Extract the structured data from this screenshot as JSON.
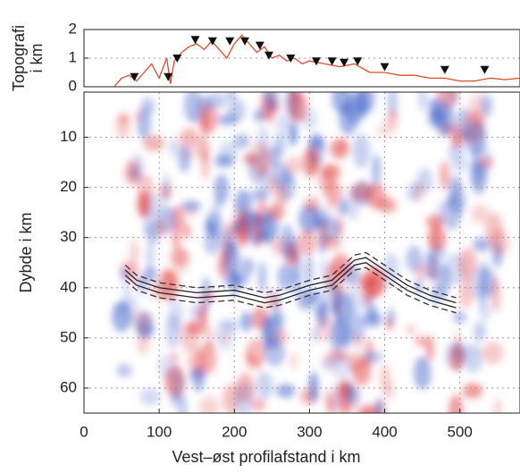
{
  "chart_data": [
    {
      "type": "line",
      "ylabel": [
        "Topografi",
        "i km"
      ],
      "xlim": [
        0,
        580
      ],
      "ylim": [
        0,
        2
      ],
      "yticks": [
        0,
        1,
        2
      ],
      "grid": true,
      "x": [
        40,
        50,
        60,
        70,
        80,
        90,
        100,
        110,
        115,
        120,
        130,
        140,
        150,
        160,
        170,
        180,
        190,
        200,
        210,
        220,
        230,
        240,
        250,
        260,
        270,
        280,
        290,
        300,
        320,
        340,
        360,
        380,
        400,
        420,
        440,
        460,
        480,
        500,
        520,
        540,
        560,
        580
      ],
      "values": [
        0,
        0.3,
        0.4,
        0.2,
        0.5,
        0.8,
        0.3,
        1.0,
        0.1,
        0.9,
        1.2,
        1.4,
        1.5,
        1.3,
        1.6,
        1.3,
        1.0,
        1.5,
        1.8,
        1.5,
        1.2,
        1.4,
        1.0,
        1.1,
        0.9,
        1.0,
        0.8,
        0.9,
        0.8,
        0.7,
        0.8,
        0.5,
        0.5,
        0.4,
        0.4,
        0.3,
        0.3,
        0.2,
        0.2,
        0.3,
        0.25,
        0.3
      ],
      "color": "#e04a2a",
      "stations": {
        "x": [
          67,
          112,
          124,
          148,
          171,
          194,
          214,
          234,
          246,
          275,
          309,
          330,
          346,
          364,
          400,
          480,
          533
        ],
        "values": [
          0.35,
          0.35,
          1.0,
          1.65,
          1.6,
          1.6,
          1.6,
          1.45,
          1.1,
          1.0,
          0.9,
          0.9,
          0.85,
          0.9,
          0.7,
          0.6,
          0.6
        ],
        "color": "#111"
      }
    },
    {
      "type": "line",
      "xlabel": "Vest–øst profilafstand i km",
      "ylabel": "Dybde i km",
      "xlim": [
        0,
        580
      ],
      "ylim": [
        65,
        1
      ],
      "xticks": [
        0,
        100,
        200,
        300,
        400,
        500
      ],
      "yticks": [
        10,
        20,
        30,
        40,
        50,
        60
      ],
      "grid": true,
      "x": [
        55,
        70,
        100,
        150,
        200,
        240,
        260,
        300,
        330,
        360,
        375,
        400,
        430,
        460,
        495
      ],
      "lines": [
        {
          "style": "dashed",
          "color": "#333",
          "values": [
            35.5,
            37.5,
            39,
            40,
            39.5,
            41,
            40.5,
            38.5,
            37.5,
            33.5,
            33,
            35.5,
            38.5,
            40.5,
            42
          ]
        },
        {
          "style": "solid",
          "color": "#222",
          "values": [
            36.5,
            38.5,
            40,
            41,
            40.5,
            42,
            41.5,
            39.5,
            38.5,
            34.5,
            34,
            36.5,
            39.5,
            41.5,
            43
          ]
        },
        {
          "style": "solid",
          "color": "#222",
          "values": [
            37.5,
            39.5,
            41,
            42,
            41.5,
            43,
            42.5,
            40.5,
            39.5,
            35.5,
            35,
            37.5,
            40.5,
            42.5,
            44
          ]
        },
        {
          "style": "dashed",
          "color": "#333",
          "values": [
            38.5,
            40.5,
            42,
            43,
            42.5,
            44,
            43.5,
            41.5,
            40.5,
            36.5,
            36,
            38.5,
            41.5,
            43.5,
            45
          ]
        }
      ]
    }
  ]
}
